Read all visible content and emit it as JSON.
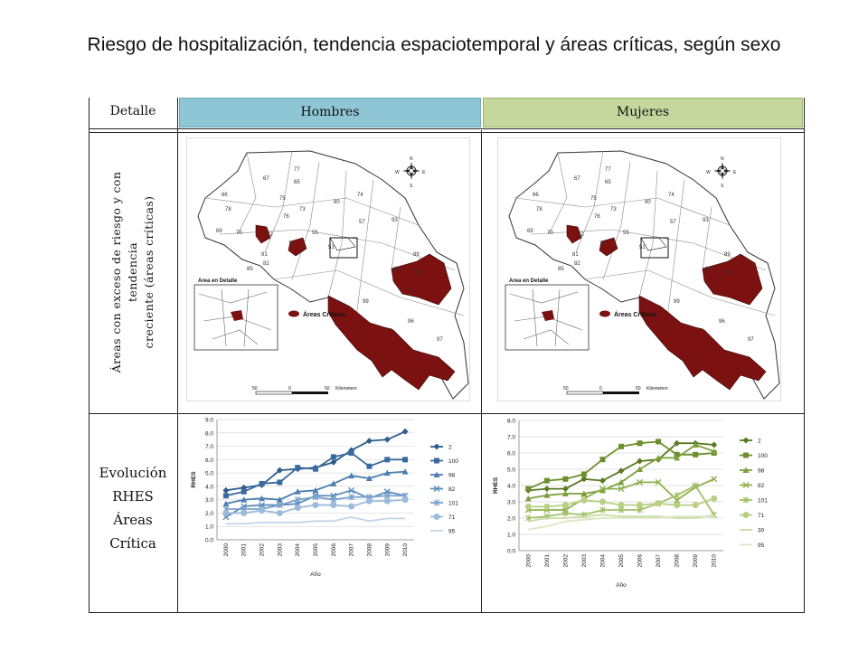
{
  "title": "Riesgo de hospitalización, tendencia espaciotemporal y áreas críticas, según sexo",
  "table": {
    "header_detalle": "Detalle",
    "header_hombres": "Hombres",
    "header_mujeres": "Mujeres",
    "row1_label_line1": "Áreas con exceso de riesgo y con tendencia",
    "row1_label_line2": "creciente (áreas críticas)",
    "row2_label": [
      "Evolución",
      "RHES",
      "Áreas",
      "Crítica"
    ]
  },
  "colors": {
    "hombres_header": "#8fc6d6",
    "mujeres_header": "#c5d79c",
    "critical_area": "#7b1111"
  },
  "maps": {
    "legend_label": "Áreas Críticas",
    "inset_label": "Area en Detalle",
    "scale_labels": [
      "50",
      "0",
      "50"
    ],
    "scale_unit": "Kilometers",
    "compass_labels": [
      "N",
      "S",
      "E",
      "W"
    ],
    "region_numbers": [
      "77",
      "67",
      "65",
      "66",
      "75",
      "73",
      "78",
      "76",
      "69",
      "70",
      "72",
      "79",
      "81",
      "85",
      "80",
      "55",
      "51",
      "74",
      "93",
      "57",
      "48",
      "89",
      "91",
      "99",
      "96",
      "97",
      "82"
    ]
  },
  "chart_data": [
    {
      "type": "line",
      "title": "",
      "xlabel": "Año",
      "ylabel": "RHES",
      "ylim": [
        0,
        9
      ],
      "yticks": [
        "0.0",
        "1.0",
        "2.0",
        "3.0",
        "4.0",
        "5.0",
        "6.0",
        "7.0",
        "8.0",
        "9.0"
      ],
      "x": [
        "2000",
        "2001",
        "2002",
        "2003",
        "2004",
        "2005",
        "2006",
        "2007",
        "2008",
        "2009",
        "2010"
      ],
      "legend_position": "right",
      "series": [
        {
          "name": "2",
          "marker": "diamond",
          "color": "#2e5d8c",
          "values": [
            3.7,
            3.9,
            4.1,
            5.2,
            5.3,
            5.4,
            5.8,
            6.7,
            7.4,
            7.5,
            8.1
          ]
        },
        {
          "name": "100",
          "marker": "square",
          "color": "#3a6a9d",
          "values": [
            3.3,
            3.6,
            4.2,
            4.3,
            5.4,
            5.3,
            6.2,
            6.5,
            5.5,
            6.0,
            6.0
          ]
        },
        {
          "name": "98",
          "marker": "triangle",
          "color": "#4d7fb0",
          "values": [
            2.7,
            3.0,
            3.1,
            3.0,
            3.6,
            3.7,
            4.2,
            4.8,
            4.6,
            5.0,
            5.1
          ]
        },
        {
          "name": "82",
          "marker": "x",
          "color": "#5c8dbc",
          "values": [
            1.7,
            2.5,
            2.6,
            2.6,
            2.7,
            3.3,
            3.3,
            3.7,
            3.1,
            3.6,
            3.3
          ]
        },
        {
          "name": "101",
          "marker": "star",
          "color": "#7aa3cb",
          "values": [
            2.3,
            2.3,
            2.3,
            2.6,
            3.0,
            3.2,
            3.0,
            3.2,
            3.2,
            3.3,
            3.3
          ]
        },
        {
          "name": "71",
          "marker": "circle",
          "color": "#9dbbd9",
          "values": [
            2.0,
            2.0,
            2.2,
            2.0,
            2.4,
            2.6,
            2.6,
            2.5,
            2.9,
            2.9,
            3.0
          ]
        },
        {
          "name": "95",
          "marker": "none",
          "color": "#c3d5e8",
          "values": [
            1.2,
            1.2,
            1.3,
            1.3,
            1.3,
            1.4,
            1.4,
            1.7,
            1.4,
            1.6,
            1.6
          ]
        }
      ]
    },
    {
      "type": "line",
      "title": "",
      "xlabel": "Año",
      "ylabel": "RHES",
      "ylim": [
        0,
        8
      ],
      "yticks": [
        "0.0",
        "1.0",
        "2.0",
        "3.0",
        "4.0",
        "5.0",
        "6.0",
        "7.0",
        "8.0"
      ],
      "x": [
        "2000",
        "2001",
        "2002",
        "2003",
        "2004",
        "2005",
        "2006",
        "2007",
        "2008",
        "2009",
        "2010"
      ],
      "legend_position": "right",
      "series": [
        {
          "name": "2",
          "marker": "diamond",
          "color": "#5a7a22",
          "values": [
            3.7,
            3.8,
            3.8,
            4.4,
            4.3,
            4.9,
            5.5,
            5.6,
            6.6,
            6.6,
            6.5
          ]
        },
        {
          "name": "100",
          "marker": "square",
          "color": "#6b8f2c",
          "values": [
            3.8,
            4.3,
            4.4,
            4.7,
            5.6,
            6.4,
            6.6,
            6.7,
            5.9,
            5.9,
            6.0
          ]
        },
        {
          "name": "98",
          "marker": "triangle",
          "color": "#7d9f3a",
          "values": [
            3.2,
            3.4,
            3.5,
            3.5,
            3.7,
            4.2,
            5.0,
            5.7,
            5.7,
            6.5,
            6.1
          ]
        },
        {
          "name": "82",
          "marker": "x",
          "color": "#8fb04b",
          "values": [
            2.5,
            2.5,
            2.5,
            3.2,
            3.8,
            3.8,
            4.2,
            4.2,
            3.1,
            3.9,
            4.4
          ]
        },
        {
          "name": "101",
          "marker": "star",
          "color": "#a3c067",
          "values": [
            2.0,
            2.1,
            2.3,
            2.2,
            2.5,
            2.5,
            2.5,
            2.9,
            3.4,
            4.0,
            2.2
          ]
        },
        {
          "name": "71",
          "marker": "circle",
          "color": "#b8cf85",
          "values": [
            2.7,
            2.7,
            2.8,
            3.1,
            3.0,
            2.8,
            2.8,
            2.9,
            2.8,
            2.8,
            3.2
          ]
        },
        {
          "name": "30",
          "marker": "none",
          "color": "#c9dba2",
          "values": [
            1.8,
            2.0,
            2.0,
            2.1,
            2.2,
            2.1,
            2.1,
            2.1,
            2.0,
            2.0,
            2.2
          ]
        },
        {
          "name": "95",
          "marker": "none",
          "color": "#dbe6c2",
          "values": [
            1.3,
            1.5,
            1.8,
            1.9,
            2.0,
            2.0,
            2.0,
            2.0,
            2.1,
            2.1,
            2.1
          ]
        }
      ]
    }
  ]
}
